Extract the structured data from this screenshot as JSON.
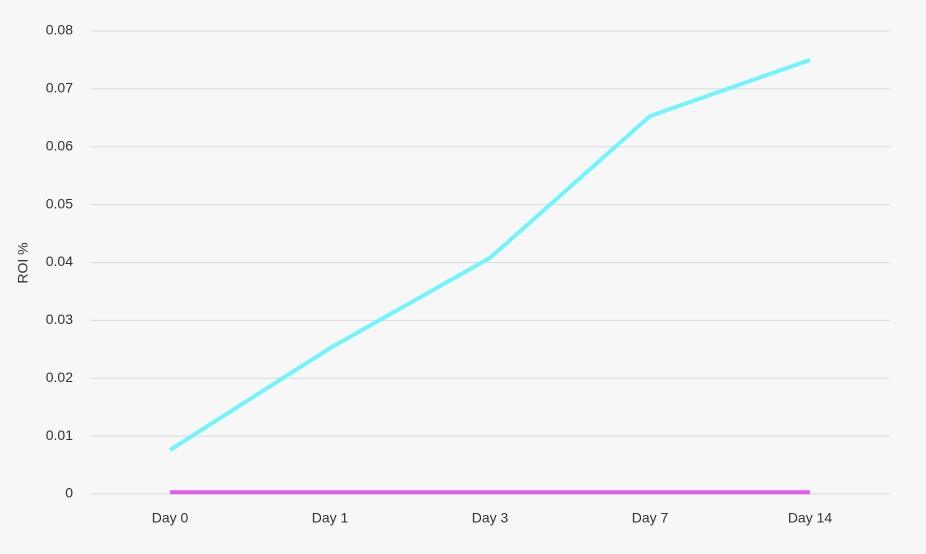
{
  "chart_data": {
    "type": "line",
    "y_label": "ROI %",
    "categories": [
      "Day 0",
      "Day 1",
      "Day 3",
      "Day 7",
      "Day 14"
    ],
    "series": [
      {
        "color": "#6ff5fb",
        "values": [
          0.0076,
          0.0252,
          0.0408,
          0.0653,
          0.075
        ]
      },
      {
        "color": "#e35cf0",
        "values": [
          0.0003,
          0.0003,
          0.0003,
          0.0003,
          0.0003
        ]
      }
    ],
    "ylim": [
      0,
      0.08
    ],
    "yticks": [
      0,
      0.01,
      0.02,
      0.03,
      0.04,
      0.05,
      0.06,
      0.07,
      0.08
    ],
    "grid": true
  }
}
